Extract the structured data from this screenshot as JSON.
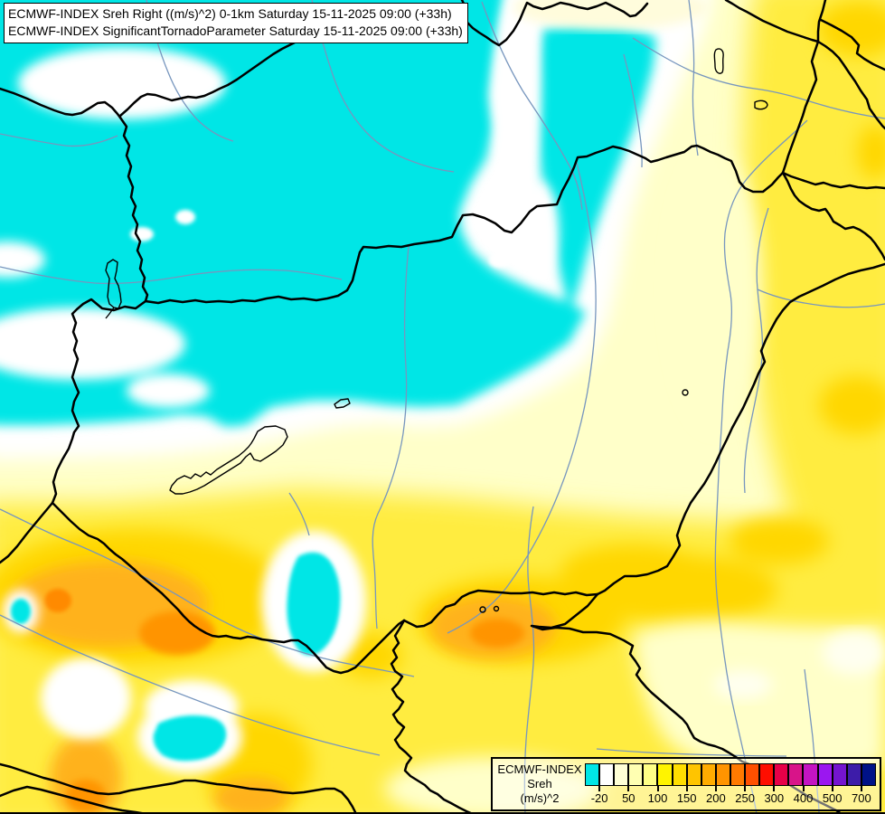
{
  "header": {
    "line1": "ECMWF-INDEX Sreh Right ((m/s)^2) 0-1km Saturday 15-11-2025 09:00 (+33h)",
    "line2": "ECMWF-INDEX SignificantTornadoParameter Saturday 15-11-2025 09:00 (+33h)"
  },
  "legend": {
    "title_line1": "ECMWF-INDEX",
    "title_line2": "Sreh",
    "title_line3": "(m/s)^2",
    "colors": [
      "#00E6E6",
      "#FFFFFF",
      "#FFFFD6",
      "#FFFFB2",
      "#FFFF86",
      "#FFF400",
      "#FFDE00",
      "#FFC400",
      "#FFAC00",
      "#FF9400",
      "#FF7A00",
      "#FF5000",
      "#FF0E00",
      "#E70048",
      "#D81489",
      "#C414C2",
      "#9B17F0",
      "#7414CF",
      "#3D1CA9",
      "#001287"
    ],
    "ticks": [
      "-20",
      "50",
      "100",
      "150",
      "200",
      "250",
      "300",
      "400",
      "500",
      "700"
    ],
    "tick_edges": [
      1,
      3,
      5,
      7,
      9,
      11,
      13,
      15,
      17,
      19
    ]
  },
  "map_colors": {
    "background_pale_yellow": "#FFFFC9",
    "negative_helicity_cyan": "#00E6E6",
    "neutral_white": "#FFFFFF",
    "pale_yellow_zone": "#FFFCDC",
    "yellow_zone": "#FFEC3F",
    "gold_zone": "#FFD700",
    "orange_zone": "#FFB21C",
    "deep_orange_zone": "#FF9400",
    "deepest_orange_zone": "#FF8A00",
    "country_border_black": "#000000",
    "river_blue": "#7796BE",
    "lake_outline_black": "#000000"
  }
}
